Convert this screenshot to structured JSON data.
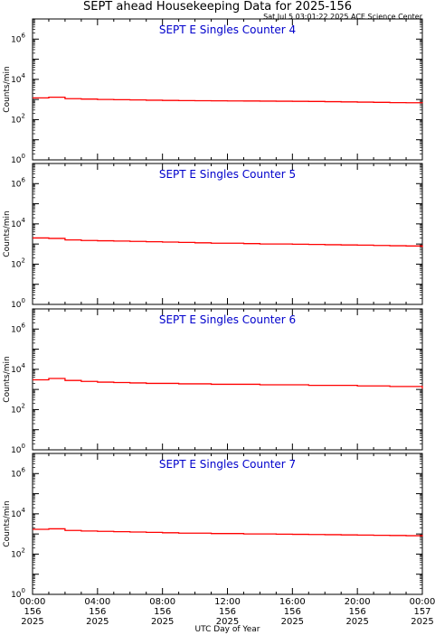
{
  "title": "SEPT ahead Housekeeping Data for 2025-156",
  "timestamp": "Sat Jul  5 03:01:22 2025 ACE Science Center",
  "xlabel": "UTC Day of Year",
  "ylabel": "Counts/min",
  "colors": {
    "series": "#ff0000",
    "panel_title": "#0000cc",
    "axis": "#000000"
  },
  "x_ticks": [
    [
      "00:00",
      "156",
      "2025"
    ],
    [
      "04:00",
      "156",
      "2025"
    ],
    [
      "08:00",
      "156",
      "2025"
    ],
    [
      "12:00",
      "156",
      "2025"
    ],
    [
      "16:00",
      "156",
      "2025"
    ],
    [
      "20:00",
      "156",
      "2025"
    ],
    [
      "00:00",
      "157",
      "2025"
    ]
  ],
  "chart_data": [
    {
      "type": "line",
      "title": "SEPT E Singles Counter 4",
      "ylabel": "Counts/min",
      "yscale": "log",
      "ylim": [
        1,
        10000000
      ],
      "ytick_labels": [
        "10^0",
        "10^2",
        "10^4",
        "10^6"
      ],
      "xlim_hours": [
        0,
        24
      ],
      "x": [
        0,
        1,
        2,
        3,
        4,
        5,
        6,
        7,
        8,
        9,
        10,
        11,
        12,
        13,
        14,
        15,
        16,
        17,
        18,
        19,
        20,
        21,
        22,
        23,
        24
      ],
      "values": [
        1200,
        1300,
        1100,
        1050,
        1000,
        980,
        950,
        920,
        900,
        880,
        870,
        860,
        850,
        840,
        830,
        820,
        810,
        800,
        780,
        760,
        740,
        720,
        700,
        690,
        650
      ]
    },
    {
      "type": "line",
      "title": "SEPT E Singles Counter 5",
      "ylabel": "Counts/min",
      "yscale": "log",
      "ylim": [
        1,
        10000000
      ],
      "ytick_labels": [
        "10^0",
        "10^2",
        "10^4",
        "10^6"
      ],
      "xlim_hours": [
        0,
        24
      ],
      "x": [
        0,
        1,
        2,
        3,
        4,
        5,
        6,
        7,
        8,
        9,
        10,
        11,
        12,
        13,
        14,
        15,
        16,
        17,
        18,
        19,
        20,
        21,
        22,
        23,
        24
      ],
      "values": [
        2000,
        1900,
        1600,
        1500,
        1450,
        1400,
        1350,
        1300,
        1250,
        1200,
        1150,
        1100,
        1100,
        1050,
        1000,
        1000,
        980,
        950,
        920,
        900,
        880,
        850,
        820,
        800,
        700
      ]
    },
    {
      "type": "line",
      "title": "SEPT E Singles Counter 6",
      "ylabel": "Counts/min",
      "yscale": "log",
      "ylim": [
        1,
        10000000
      ],
      "ytick_labels": [
        "10^0",
        "10^2",
        "10^4",
        "10^6"
      ],
      "xlim_hours": [
        0,
        24
      ],
      "x": [
        0,
        1,
        2,
        3,
        4,
        5,
        6,
        7,
        8,
        9,
        10,
        11,
        12,
        13,
        14,
        15,
        16,
        17,
        18,
        19,
        20,
        21,
        22,
        23,
        24
      ],
      "values": [
        3000,
        3500,
        2800,
        2500,
        2300,
        2200,
        2100,
        2000,
        2000,
        1900,
        1900,
        1800,
        1800,
        1800,
        1700,
        1700,
        1700,
        1600,
        1600,
        1600,
        1500,
        1500,
        1400,
        1400,
        1100
      ]
    },
    {
      "type": "line",
      "title": "SEPT E Singles Counter 7",
      "ylabel": "Counts/min",
      "yscale": "log",
      "ylim": [
        1,
        10000000
      ],
      "ytick_labels": [
        "10^0",
        "10^2",
        "10^4",
        "10^6"
      ],
      "xlim_hours": [
        0,
        24
      ],
      "x": [
        0,
        1,
        2,
        3,
        4,
        5,
        6,
        7,
        8,
        9,
        10,
        11,
        12,
        13,
        14,
        15,
        16,
        17,
        18,
        19,
        20,
        21,
        22,
        23,
        24
      ],
      "values": [
        1700,
        1800,
        1500,
        1400,
        1350,
        1300,
        1250,
        1200,
        1150,
        1100,
        1100,
        1050,
        1050,
        1000,
        1000,
        980,
        960,
        940,
        920,
        900,
        880,
        860,
        840,
        820,
        750
      ]
    }
  ]
}
